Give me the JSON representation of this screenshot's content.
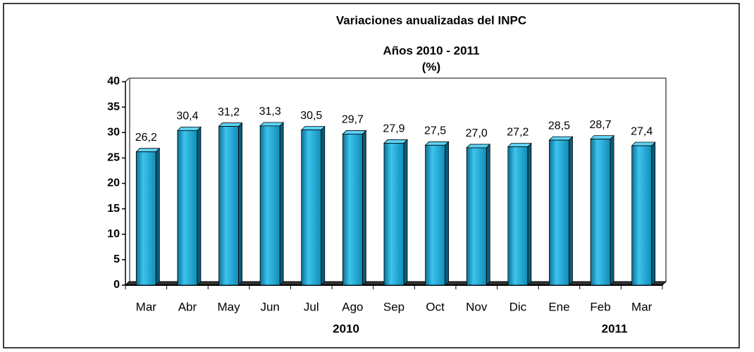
{
  "chart_data": {
    "type": "bar",
    "title": [
      "Variaciones anualizadas del INPC",
      "Años 2010 - 2011",
      "(%)"
    ],
    "categories": [
      "Mar",
      "Abr",
      "May",
      "Jun",
      "Jul",
      "Ago",
      "Sep",
      "Oct",
      "Nov",
      "Dic",
      "Ene",
      "Feb",
      "Mar"
    ],
    "x_groups": [
      {
        "label": "2010",
        "count": 10
      },
      {
        "label": "2011",
        "count": 3
      }
    ],
    "values": [
      26.2,
      30.4,
      31.2,
      31.3,
      30.5,
      29.7,
      27.9,
      27.5,
      27.0,
      27.2,
      28.5,
      28.7,
      27.4
    ],
    "value_labels": [
      "26,2",
      "30,4",
      "31,2",
      "31,3",
      "30,5",
      "29,7",
      "27,9",
      "27,5",
      "27,0",
      "27,2",
      "28,5",
      "28,7",
      "27,4"
    ],
    "color": "#1aa3cc",
    "ylim": [
      0,
      40
    ],
    "yticks": [
      0,
      5,
      10,
      15,
      20,
      25,
      30,
      35,
      40
    ],
    "grid": false
  }
}
